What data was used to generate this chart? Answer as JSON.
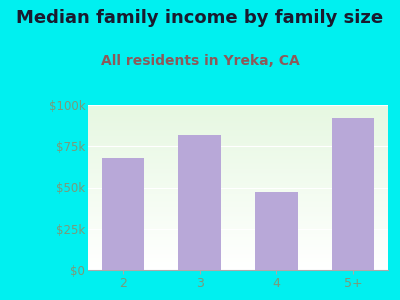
{
  "title": "Median family income by family size",
  "subtitle": "All residents in Yreka, CA",
  "categories": [
    "2",
    "3",
    "4",
    "5+"
  ],
  "values": [
    68000,
    82000,
    47000,
    92000
  ],
  "bar_color": "#b8a8d8",
  "background_color": "#00f0f0",
  "title_color": "#1a1a2e",
  "subtitle_color": "#8b5a5a",
  "tick_color": "#7a9a7a",
  "ytick_labels": [
    "$0",
    "$25k",
    "$50k",
    "$75k",
    "$100k"
  ],
  "ytick_values": [
    0,
    25000,
    50000,
    75000,
    100000
  ],
  "ylim": [
    0,
    100000
  ],
  "title_fontsize": 13,
  "subtitle_fontsize": 10,
  "tick_fontsize": 8.5
}
